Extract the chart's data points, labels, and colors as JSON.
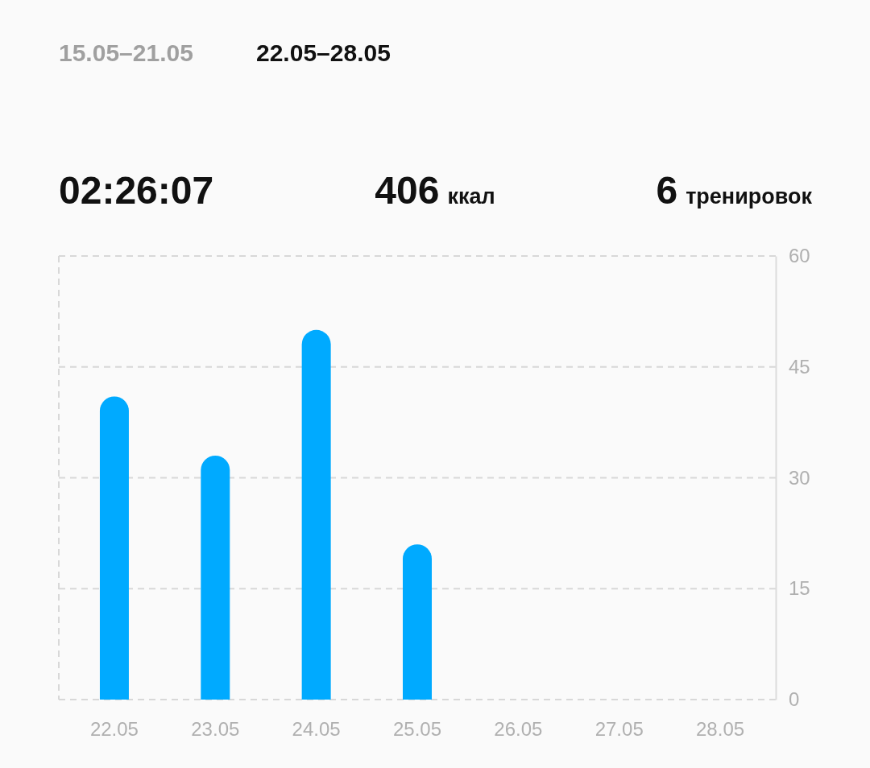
{
  "chart_data": {
    "type": "bar",
    "title": "22.05–28.05",
    "annotations": [
      "15.05–21.05",
      "02:26:07",
      "406 ккал",
      "6 тренировок"
    ],
    "categories": [
      "22.05",
      "23.05",
      "24.05",
      "25.05",
      "26.05",
      "27.05",
      "28.05"
    ],
    "values": [
      41,
      33,
      50,
      21,
      null,
      null,
      null
    ],
    "color": "#00aaff",
    "ylim": [
      0,
      60
    ],
    "yticks": [
      0,
      15,
      30,
      45,
      60
    ],
    "grid": "y"
  }
}
